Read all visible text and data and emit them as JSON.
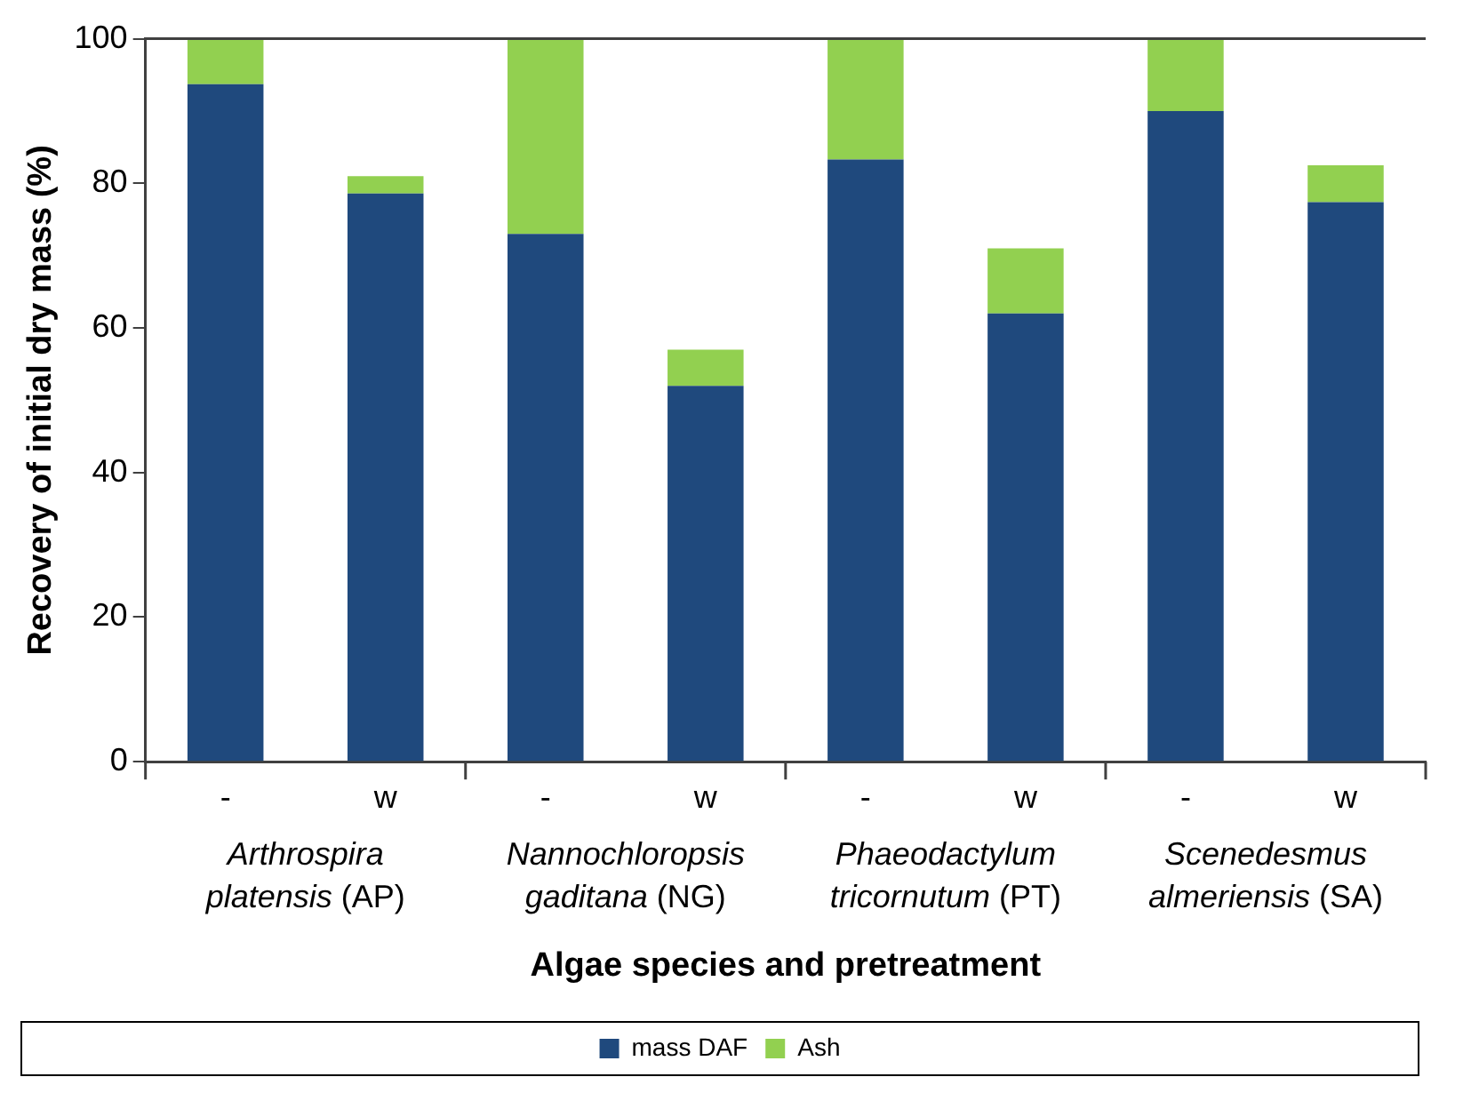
{
  "chart_data": {
    "type": "bar",
    "stacked": true,
    "ylabel": "Recovery of initial dry mass (%)",
    "xlabel": "Algae species and pretreatment",
    "categories": [
      "-",
      "w",
      "-",
      "w",
      "-",
      "w",
      "-",
      "w"
    ],
    "series": [
      {
        "name": "mass DAF",
        "color": "#1f497d",
        "values": [
          93.7,
          78.6,
          73,
          52,
          83.3,
          62,
          90,
          77.4
        ]
      },
      {
        "name": "Ash",
        "color": "#92d050",
        "values": [
          6.3,
          2.4,
          27,
          5,
          16.7,
          9,
          10,
          5.1
        ]
      }
    ],
    "annotations": [
      "Arthrospira platensis (AP)",
      "Nannochloropsis gaditana (NG)",
      "Phaeodactylum tricornutum (PT)",
      "Scenedesmus almeriensis (SA)"
    ],
    "ylim": [
      0,
      100
    ],
    "yticks": [
      0,
      20,
      40,
      60,
      80,
      100
    ],
    "grid": false,
    "legend": "bottom"
  }
}
